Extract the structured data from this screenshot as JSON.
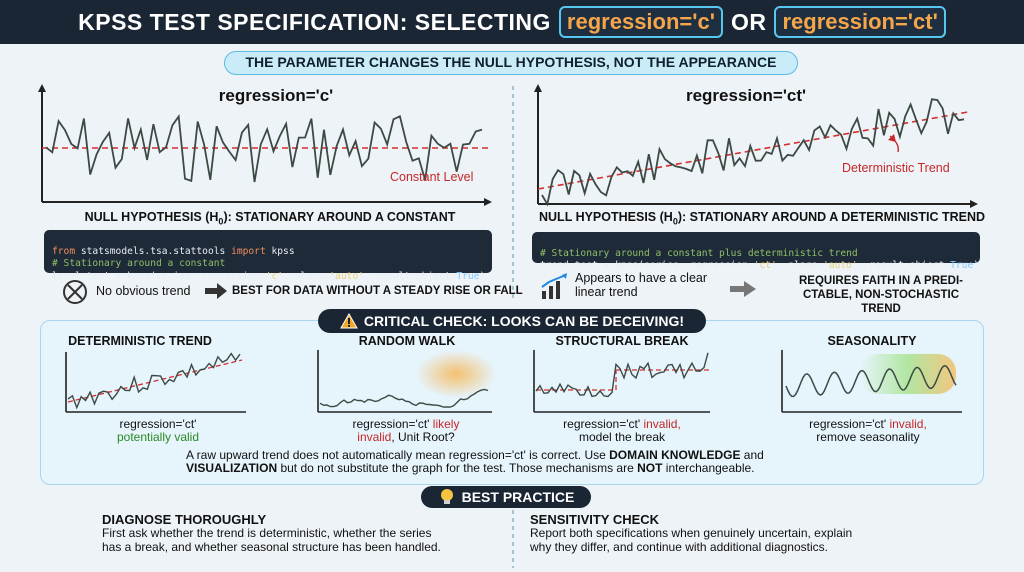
{
  "header": {
    "title_prefix": "KPSS TEST SPECIFICATION: SELECTING",
    "opt_c": "regression='c'",
    "connector": "OR",
    "opt_ct": "regression='ct'"
  },
  "banner": "THE PARAMETER CHANGES THE NULL HYPOTHESIS, NOT THE APPEARANCE",
  "left": {
    "title": "regression='c'",
    "annotation": "Constant Level",
    "null_hypothesis": "NULL HYPOTHESIS (H",
    "null_hypothesis_sub": "0",
    "null_hypothesis_rest": "): STATIONARY AROUND A CONSTANT",
    "code": {
      "l1_kw": "from",
      "l1_mod": " statsmodels.tsa.stattools ",
      "l1_kw2": "import",
      "l1_name": " kpss",
      "l2": "# Stationary around a constant",
      "l3_a": "level_test = kpss(series, regression=",
      "l3_s1": "'c'",
      "l3_b": ", nlags=",
      "l3_s2": "'auto'",
      "l3_c": ", result_object=",
      "l3_t": "True",
      "l3_d": ")"
    },
    "footnote_a": "No obvious trend",
    "footnote_b": "BEST FOR DATA WITHOUT A STEADY RISE OR FALL"
  },
  "right": {
    "title": "regression='ct'",
    "annotation": "Deterministic Trend",
    "null_hypothesis": "NULL HYPOTHESIS (H",
    "null_hypothesis_sub": "0",
    "null_hypothesis_rest": "): STATIONARY AROUND A DETERMINISTIC TREND",
    "code": {
      "l1": "# Stationary around a constant plus deterministic trend",
      "l2_a": "trend_test = kpss(series, regression=",
      "l2_s1": "'ct'",
      "l2_b": ", nlags=",
      "l2_s2": "'auto'",
      "l2_c": ", result_object=",
      "l2_t": "True",
      "l2_d": ")"
    },
    "footnote_a1": "Appears to have a clear",
    "footnote_a2": "linear trend",
    "footnote_b1": "REQUIRES FAITH IN A PREDI-",
    "footnote_b2": "CTABLE, NON-STOCHASTIC TREND"
  },
  "critical": {
    "title": "CRITICAL CHECK: LOOKS CAN BE DECEIVING!",
    "cases": [
      {
        "title": "DETERMINISTIC TREND",
        "cap1": "regression='ct'",
        "cap2": "potentially valid"
      },
      {
        "title": "RANDOM WALK",
        "cap1a": "regression='ct'",
        "cap1b": " likely",
        "cap2a": "invalid",
        "cap2b": ", Unit Root?"
      },
      {
        "title": "STRUCTURAL BREAK",
        "cap1a": "regression='ct'",
        "cap1b": " invalid,",
        "cap2": "model the break"
      },
      {
        "title": "SEASONALITY",
        "cap1a": "regression='ct'",
        "cap1b": " invalid,",
        "cap2": "remove seasonality"
      }
    ],
    "note_a": "A raw upward trend does not automatically mean regression='ct' is correct. Use ",
    "note_b": "DOMAIN KNOWLEDGE",
    "note_c": " and",
    "note_d": "VISUALIZATION",
    "note_e": " but do not substitute the graph for the test. Those mechanisms are ",
    "note_f": "NOT",
    "note_g": " interchangeable."
  },
  "best_practice": {
    "title": "BEST PRACTICE",
    "left_head": "DIAGNOSE THOROUGHLY",
    "left_text1": "First ask whether the trend is deterministic, whether the series",
    "left_text2": "has a break, and whether seasonal structure has been handled.",
    "right_head": "SENSITIVITY CHECK",
    "right_text1": "Report both specifications when genuinely uncertain, explain",
    "right_text2": "why they differ, and continue with additional diagnostics."
  },
  "colors": {
    "dark": "#1b2635",
    "accent": "#f5a64a",
    "series": "#3c4a44",
    "red_line": "#d32f2f",
    "green": "#2a8a25"
  }
}
